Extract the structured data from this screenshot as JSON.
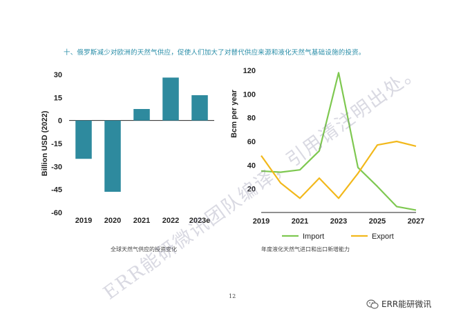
{
  "page": {
    "title": "十、俄罗斯减少对欧洲的天然气供应，促使人们加大了对替代供应来源和液化天然气基础设施的投资。",
    "page_number": "12",
    "watermark": "ERR能研微讯团队编译，引用请注明出处。",
    "brand": "ERR能研微讯"
  },
  "colors": {
    "bar": "#2e8a9e",
    "import": "#7ec850",
    "export": "#f2b81b",
    "title": "#2a8ea8"
  },
  "chart_data": [
    {
      "type": "bar",
      "categories": [
        "2019",
        "2020",
        "2021",
        "2022",
        "2023e"
      ],
      "values": [
        -25,
        -46.5,
        7.5,
        28,
        16.5
      ],
      "ylabel": "Billion USD (2022)",
      "ylim": [
        -60,
        30
      ],
      "yticks": [
        30,
        15,
        0,
        -15,
        -30,
        -45,
        -60
      ],
      "ytick_labels": [
        "30",
        "15",
        "0",
        "-15",
        "-30",
        "-45",
        "-60"
      ],
      "caption": "全球天然气供应的投资变化"
    },
    {
      "type": "line",
      "x": [
        2019,
        2020,
        2021,
        2022,
        2023,
        2024,
        2025,
        2026,
        2027
      ],
      "xticks": [
        2019,
        2021,
        2023,
        2025,
        2027
      ],
      "xtick_labels": [
        "2019",
        "2021",
        "2023",
        "2025",
        "2027"
      ],
      "ylabel": "Bcm per year",
      "ylim": [
        0,
        120
      ],
      "yticks": [
        20,
        40,
        60,
        80,
        100,
        120
      ],
      "ytick_labels": [
        "20",
        "40",
        "60",
        "80",
        "100",
        "120"
      ],
      "series": [
        {
          "name": "Import",
          "values": [
            35,
            34,
            36,
            52,
            118,
            38,
            22,
            5,
            2
          ]
        },
        {
          "name": "Export",
          "values": [
            48,
            25,
            12,
            29,
            12,
            33,
            57,
            60,
            56
          ]
        }
      ],
      "legend": "bottom",
      "caption": "年度液化天然气进口和出口新增能力"
    }
  ]
}
